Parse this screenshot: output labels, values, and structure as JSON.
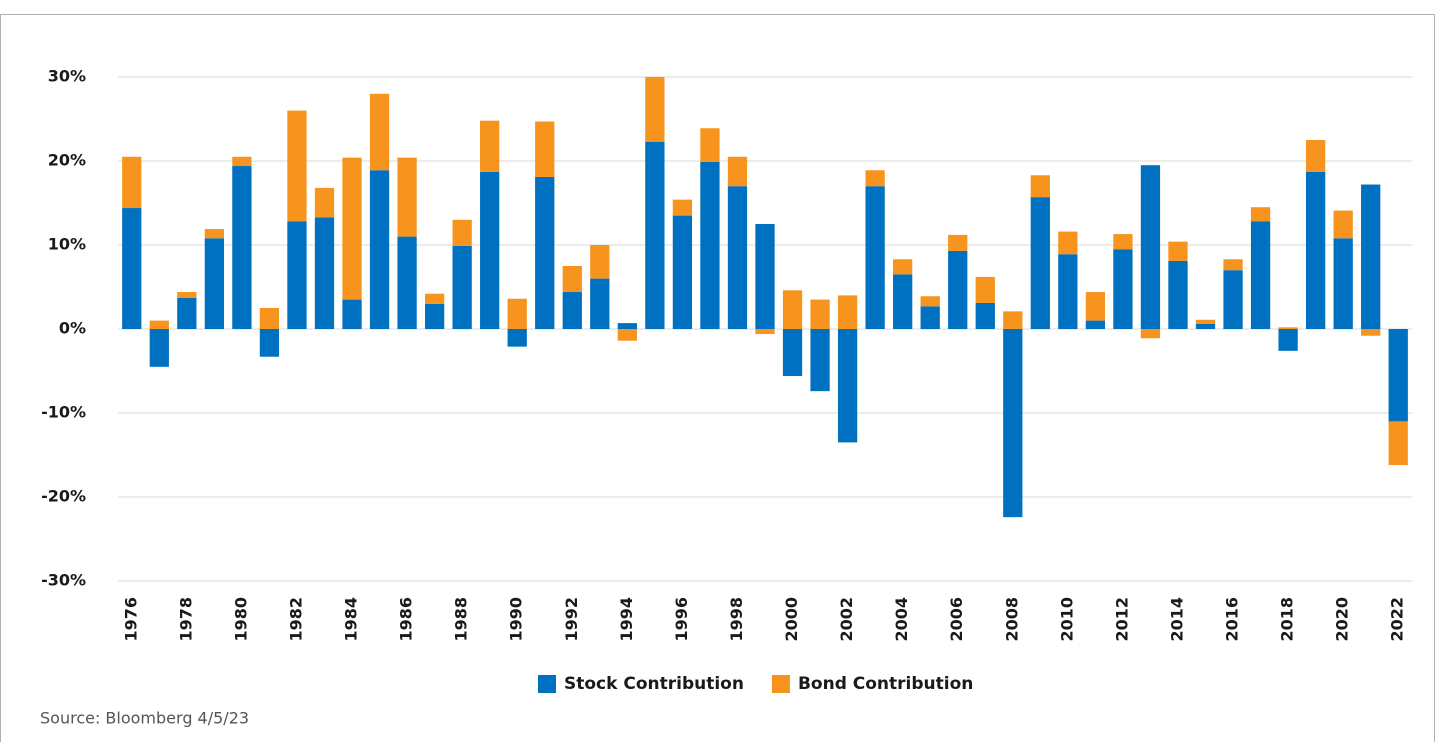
{
  "chart_data": {
    "type": "stacked_bar",
    "categories": [
      "1976",
      null,
      "1978",
      null,
      "1980",
      null,
      "1982",
      null,
      "1984",
      null,
      "1986",
      null,
      "1988",
      null,
      "1990",
      null,
      "1992",
      null,
      "1994",
      null,
      "1996",
      null,
      "1998",
      null,
      "2000",
      null,
      "2002",
      null,
      "2004",
      null,
      "2006",
      null,
      "2008",
      null,
      "2010",
      null,
      "2012",
      null,
      "2014",
      null,
      "2016",
      null,
      "2018",
      null,
      "2020",
      null,
      "2022"
    ],
    "series": [
      {
        "name": "Stock Contribution",
        "color": "#0070c0",
        "values": [
          14.4,
          -4.5,
          3.7,
          10.8,
          19.4,
          -3.3,
          12.8,
          13.3,
          3.5,
          18.9,
          11.0,
          3.0,
          9.9,
          18.7,
          -2.1,
          18.1,
          4.4,
          6.0,
          0.7,
          22.3,
          13.5,
          19.9,
          17.0,
          12.5,
          -5.6,
          -7.4,
          -13.5,
          17.0,
          6.5,
          2.7,
          9.3,
          3.1,
          -22.4,
          15.7,
          8.9,
          1.0,
          9.5,
          19.5,
          8.1,
          0.6,
          7.0,
          12.8,
          -2.6,
          18.7,
          10.8,
          17.2,
          -11.0
        ]
      },
      {
        "name": "Bond Contribution",
        "color": "#f7941d",
        "values": [
          6.1,
          1.0,
          0.7,
          1.1,
          1.1,
          2.5,
          13.2,
          3.5,
          16.9,
          9.1,
          9.4,
          1.2,
          3.1,
          6.1,
          3.6,
          6.6,
          3.1,
          4.0,
          -1.4,
          7.7,
          1.9,
          4.0,
          3.5,
          -0.6,
          4.6,
          3.5,
          4.0,
          1.9,
          1.8,
          1.2,
          1.9,
          3.1,
          2.1,
          2.6,
          2.7,
          3.4,
          1.8,
          -1.1,
          2.3,
          0.5,
          1.3,
          1.7,
          0.2,
          3.8,
          3.3,
          -0.8,
          -5.2
        ]
      }
    ],
    "ylim": [
      -30,
      30
    ],
    "yticks": [
      {
        "value": -30,
        "label": "-30%"
      },
      {
        "value": -20,
        "label": "-20%"
      },
      {
        "value": -10,
        "label": "-10%"
      },
      {
        "value": 0,
        "label": "0%"
      },
      {
        "value": 10,
        "label": "10%"
      },
      {
        "value": 20,
        "label": "20%"
      },
      {
        "value": 30,
        "label": "30%"
      }
    ],
    "grid": true,
    "legend": "bottom",
    "source": "Source: Bloomberg 4/5/23"
  }
}
